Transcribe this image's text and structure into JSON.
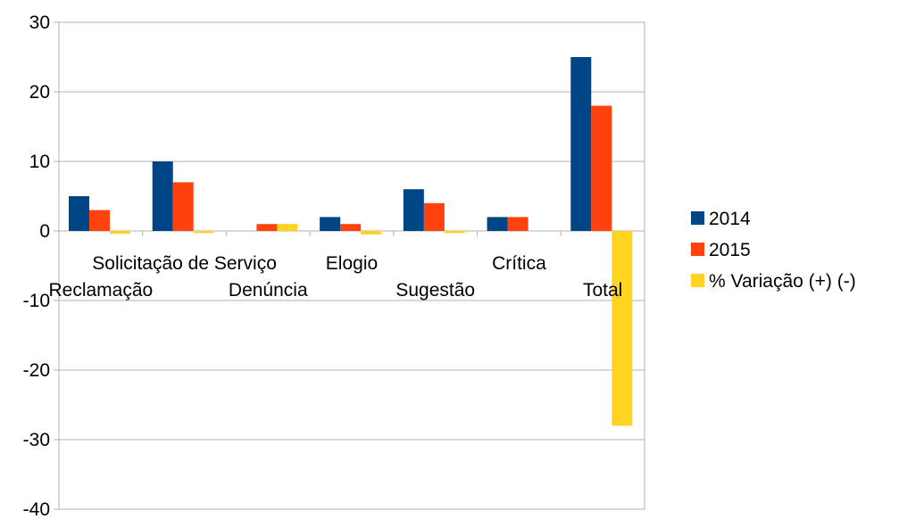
{
  "chart_data": {
    "type": "bar",
    "categories": [
      "Reclamação",
      "Solicitação de Serviço",
      "Denúncia",
      "Elogio",
      "Sugestão",
      "Crítica",
      "Total"
    ],
    "series": [
      {
        "name": "2014",
        "color": "#004586",
        "values": [
          5,
          10,
          0,
          2,
          6,
          2,
          25
        ]
      },
      {
        "name": "2015",
        "color": "#ff420e",
        "values": [
          3,
          7,
          1,
          1,
          4,
          2,
          18
        ]
      },
      {
        "name": "% Variação (+) (-)",
        "color": "#ffd320",
        "values": [
          -0.4,
          -0.3,
          1,
          -0.5,
          -0.3,
          0,
          -28
        ]
      }
    ],
    "ylim": [
      -40,
      30
    ],
    "yticks": [
      30,
      20,
      10,
      0,
      -10,
      -20,
      -30,
      -40
    ],
    "grid": "horizontal",
    "legend": "right",
    "title": "",
    "xlabel": "",
    "ylabel": ""
  }
}
